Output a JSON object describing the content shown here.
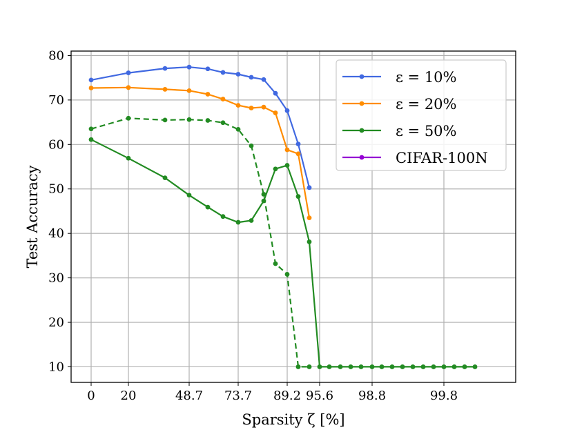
{
  "chart_data": {
    "type": "line",
    "xlabel": "Sparsity ζ [%]",
    "ylabel": "Test Accuracy",
    "x_tick_labels": [
      "0",
      "20",
      "48.7",
      "73.7",
      "89.2",
      "95.6",
      "98.8",
      "99.8"
    ],
    "y_ticks": [
      10,
      20,
      30,
      40,
      50,
      60,
      70,
      80
    ],
    "ylim": [
      6.5,
      81
    ],
    "grid": true,
    "legend_placement": "top-right",
    "note": "x axis is a nonuniform (log-like) sparsity scale; x values below are sparsity in %",
    "series": [
      {
        "name": "ε = 10%",
        "color": "#4169e1",
        "style": "solid",
        "x": [
          0,
          20,
          36.0,
          48.7,
          59.0,
          67.2,
          73.7,
          79.0,
          83.2,
          86.6,
          89.2,
          91.4,
          93.1
        ],
        "y": [
          74.5,
          76.1,
          77.1,
          77.4,
          77.0,
          76.2,
          75.8,
          75.1,
          74.6,
          71.5,
          67.6,
          60.1,
          50.3
        ]
      },
      {
        "name": "ε = 20%",
        "color": "#ff8c00",
        "style": "solid",
        "x": [
          0,
          20,
          36.0,
          48.7,
          59.0,
          67.2,
          73.7,
          79.0,
          83.2,
          86.6,
          89.2,
          91.4,
          93.1
        ],
        "y": [
          72.7,
          72.8,
          72.4,
          72.1,
          71.3,
          70.2,
          68.8,
          68.2,
          68.4,
          67.1,
          58.8,
          57.9,
          43.5
        ]
      },
      {
        "name": "ε = 50%",
        "color": "#228b22",
        "style": "solid",
        "x": [
          0,
          20,
          36.0,
          48.7,
          59.0,
          67.2,
          73.7,
          79.0,
          83.2,
          86.6,
          89.2,
          91.4,
          93.1,
          95.6,
          96.5,
          97.2,
          97.8,
          98.3,
          98.8,
          99.0,
          99.2,
          99.35,
          99.5,
          99.6,
          99.7,
          99.8,
          99.85,
          99.9,
          99.95
        ],
        "y": [
          61.1,
          56.9,
          52.5,
          48.6,
          45.9,
          43.8,
          42.5,
          42.9,
          47.3,
          54.5,
          55.3,
          48.3,
          38.1,
          10.0,
          10.0,
          10.0,
          10.0,
          10.0,
          10.0,
          10.0,
          10.0,
          10.0,
          10.0,
          10.0,
          10.0,
          10.0,
          10.0,
          10.0,
          10.0
        ]
      },
      {
        "color": "#228b22",
        "style": "dashed",
        "x": [
          0,
          20,
          36.0,
          48.7,
          59.0,
          67.2,
          73.7,
          79.0,
          83.2,
          86.6,
          89.2,
          91.4,
          93.1
        ],
        "y": [
          63.5,
          65.9,
          65.5,
          65.6,
          65.4,
          64.9,
          63.4,
          59.7,
          48.8,
          33.2,
          30.8,
          10.0,
          10.0
        ]
      },
      {
        "name": "CIFAR-100N",
        "color": "#9400d3",
        "style": "solid",
        "x": [],
        "y": []
      }
    ]
  }
}
